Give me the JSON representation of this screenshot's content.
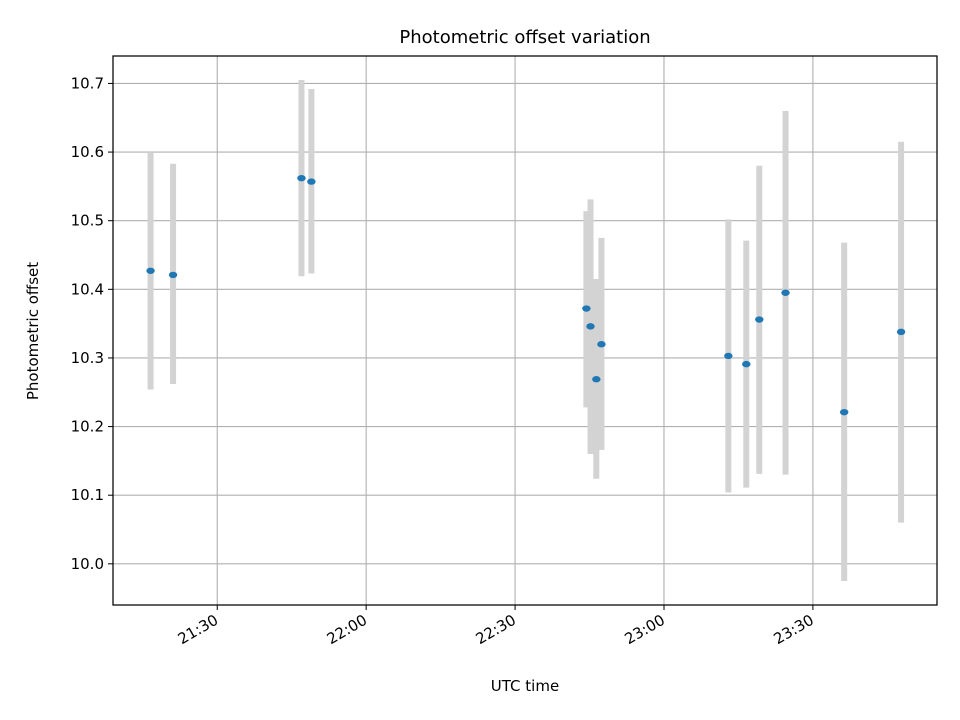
{
  "chart_data": {
    "type": "scatter",
    "title": "Photometric offset variation",
    "xlabel": "UTC time",
    "ylabel": "Photometric offset",
    "xlim": [
      "21:09",
      "23:55"
    ],
    "ylim": [
      9.94,
      10.74
    ],
    "x_ticks": [
      "21:30",
      "22:00",
      "22:30",
      "23:00",
      "23:30"
    ],
    "y_ticks": [
      "10.0",
      "10.1",
      "10.2",
      "10.3",
      "10.4",
      "10.5",
      "10.6",
      "10.7"
    ],
    "grid": true,
    "colors": {
      "points": "#1f77b4",
      "error_bars": "#d3d3d3",
      "grid": "#b0b0b0"
    },
    "points": [
      {
        "x": "21:16:34",
        "y": 10.427,
        "err_low": 10.254,
        "err_high": 10.6
      },
      {
        "x": "21:21:06",
        "y": 10.421,
        "err_low": 10.262,
        "err_high": 10.583
      },
      {
        "x": "21:46:58",
        "y": 10.562,
        "err_low": 10.419,
        "err_high": 10.705
      },
      {
        "x": "21:48:58",
        "y": 10.557,
        "err_low": 10.423,
        "err_high": 10.692
      },
      {
        "x": "22:44:22",
        "y": 10.372,
        "err_low": 10.228,
        "err_high": 10.514
      },
      {
        "x": "22:45:12",
        "y": 10.346,
        "err_low": 10.16,
        "err_high": 10.531
      },
      {
        "x": "22:46:22",
        "y": 10.269,
        "err_low": 10.124,
        "err_high": 10.415
      },
      {
        "x": "22:47:24",
        "y": 10.32,
        "err_low": 10.166,
        "err_high": 10.475
      },
      {
        "x": "23:12:58",
        "y": 10.303,
        "err_low": 10.104,
        "err_high": 10.502
      },
      {
        "x": "23:16:35",
        "y": 10.291,
        "err_low": 10.111,
        "err_high": 10.471
      },
      {
        "x": "23:19:12",
        "y": 10.356,
        "err_low": 10.131,
        "err_high": 10.58
      },
      {
        "x": "23:24:29",
        "y": 10.395,
        "err_low": 10.13,
        "err_high": 10.66
      },
      {
        "x": "23:36:18",
        "y": 10.221,
        "err_low": 9.975,
        "err_high": 10.468
      },
      {
        "x": "23:47:46",
        "y": 10.338,
        "err_low": 10.06,
        "err_high": 10.615
      }
    ]
  }
}
